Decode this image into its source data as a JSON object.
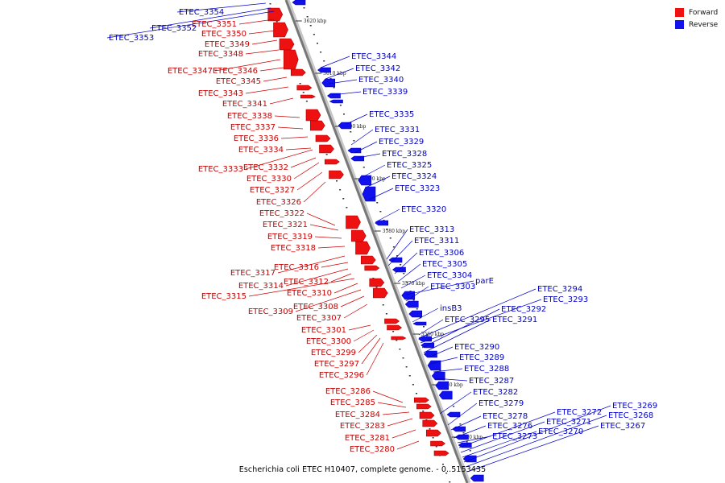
{
  "legend": {
    "forward_label": "Forward",
    "reverse_label": "Reverse",
    "forward_color": "#ee1111",
    "reverse_color": "#1111ee"
  },
  "caption": "Escherichia coli ETEC H10407, complete genome. - 0..5153435",
  "ticks": [
    "3620 kbp",
    "3610 kbp",
    "3600 kbp",
    "3590 kbp",
    "3580 kbp",
    "3570 kbp",
    "3560 kbp",
    "3550 kbp",
    "3540 kbp"
  ],
  "forward_labels": [
    "ETEC_3351",
    "ETEC_3350",
    "ETEC_3349",
    "ETEC_3348",
    "ETEC_3347",
    "ETEC_3346",
    "ETEC_3345",
    "ETEC_3343",
    "ETEC_3341",
    "ETEC_3338",
    "ETEC_3337",
    "ETEC_3336",
    "ETEC_3334",
    "ETEC_3333",
    "ETEC_3332",
    "ETEC_3330",
    "ETEC_3327",
    "ETEC_3326",
    "ETEC_3322",
    "ETEC_3321",
    "ETEC_3319",
    "ETEC_3318",
    "ETEC_3317",
    "ETEC_3316",
    "ETEC_3314",
    "ETEC_3312",
    "ETEC_3315",
    "ETEC_3310",
    "ETEC_3309",
    "ETEC_3308",
    "ETEC_3307",
    "ETEC_3301",
    "ETEC_3300",
    "ETEC_3299",
    "ETEC_3297",
    "ETEC_3296",
    "ETEC_3286",
    "ETEC_3285",
    "ETEC_3284",
    "ETEC_3283",
    "ETEC_3281",
    "ETEC_3280"
  ],
  "reverse_labels": [
    "ETEC_3354",
    "ETEC_3352",
    "ETEC_3353",
    "ETEC_3344",
    "ETEC_3342",
    "ETEC_3340",
    "ETEC_3339",
    "ETEC_3335",
    "ETEC_3331",
    "ETEC_3329",
    "ETEC_3328",
    "ETEC_3325",
    "ETEC_3324",
    "ETEC_3323",
    "ETEC_3320",
    "ETEC_3313",
    "ETEC_3311",
    "ETEC_3306",
    "ETEC_3305",
    "ETEC_3304",
    "parE",
    "ETEC_3303",
    "insB3",
    "ETEC_3295",
    "ETEC_3294",
    "ETEC_3293",
    "ETEC_3292",
    "ETEC_3291",
    "ETEC_3290",
    "ETEC_3289",
    "ETEC_3288",
    "ETEC_3287",
    "ETEC_3282",
    "ETEC_3279",
    "ETEC_3278",
    "ETEC_3276",
    "ETEC_3273",
    "ETEC_3272",
    "ETEC_3271",
    "ETEC_3270",
    "ETEC_3269",
    "ETEC_3268",
    "ETEC_3267"
  ]
}
